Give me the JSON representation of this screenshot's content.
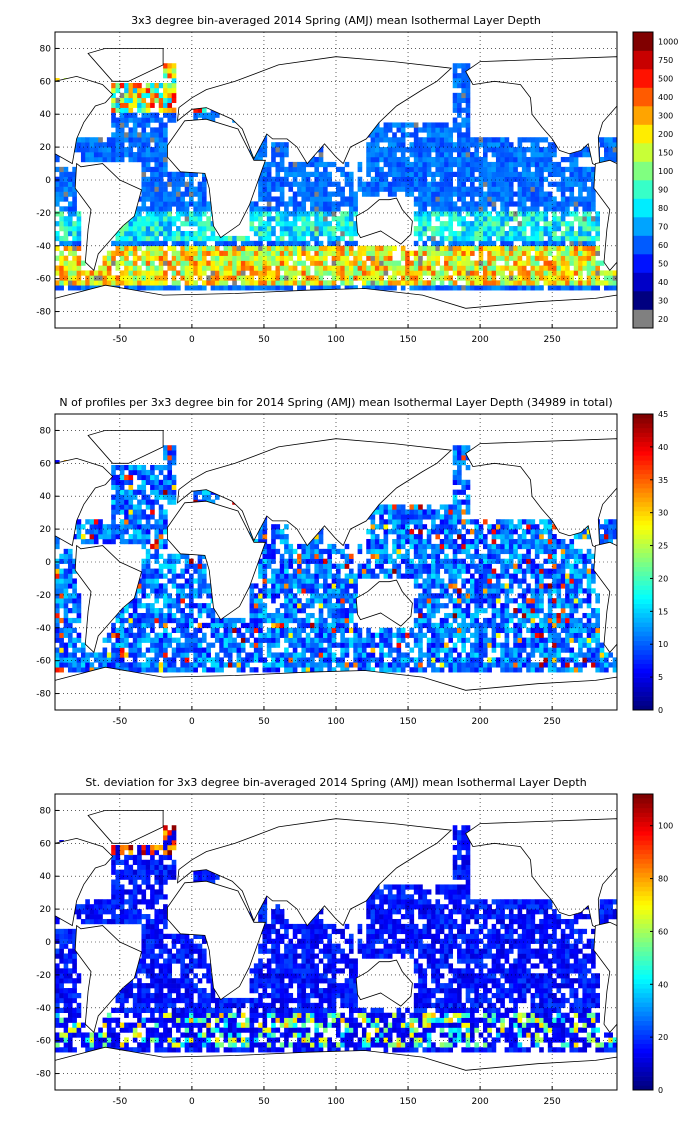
{
  "panels": [
    {
      "id": "mean",
      "title": "3x3 degree bin-averaged 2014 Spring (AMJ) mean Isothermal Layer Depth",
      "colorbar_ticks": [
        "20",
        "30",
        "40",
        "50",
        "60",
        "70",
        "80",
        "90",
        "100",
        "150",
        "200",
        "300",
        "400",
        "500",
        "750",
        "1000"
      ],
      "colorbar_scale": "categorical",
      "field": "mean"
    },
    {
      "id": "count",
      "title": "N of profiles per 3x3 degree bin for 2014 Spring (AMJ) mean Isothermal Layer Depth  (34989 in total)",
      "colorbar_ticks": [
        "0",
        "5",
        "10",
        "15",
        "20",
        "25",
        "30",
        "35",
        "40",
        "45"
      ],
      "colorbar_range": [
        0,
        45
      ],
      "field": "count"
    },
    {
      "id": "std",
      "title": "St. deviation for 3x3 degree bin-averaged 2014 Spring (AMJ) mean Isothermal Layer Depth",
      "colorbar_ticks": [
        "0",
        "20",
        "40",
        "60",
        "80",
        "100"
      ],
      "colorbar_range": [
        0,
        112
      ],
      "field": "std"
    }
  ],
  "axes": {
    "x_ticks": [
      "-50",
      "0",
      "50",
      "100",
      "150",
      "200",
      "250"
    ],
    "x_values": [
      -50,
      0,
      50,
      100,
      150,
      200,
      250
    ],
    "x_range": [
      -95,
      295
    ],
    "y_ticks": [
      "80",
      "60",
      "40",
      "20",
      "0",
      "-20",
      "-40",
      "-60",
      "-80"
    ],
    "y_values": [
      80,
      60,
      40,
      20,
      0,
      -20,
      -40,
      -60,
      -80
    ],
    "y_range": [
      -90,
      90
    ],
    "grid": "dotted"
  },
  "colors": {
    "missing": "#808080",
    "land_outline": "#000000",
    "colormap": "jet"
  }
}
